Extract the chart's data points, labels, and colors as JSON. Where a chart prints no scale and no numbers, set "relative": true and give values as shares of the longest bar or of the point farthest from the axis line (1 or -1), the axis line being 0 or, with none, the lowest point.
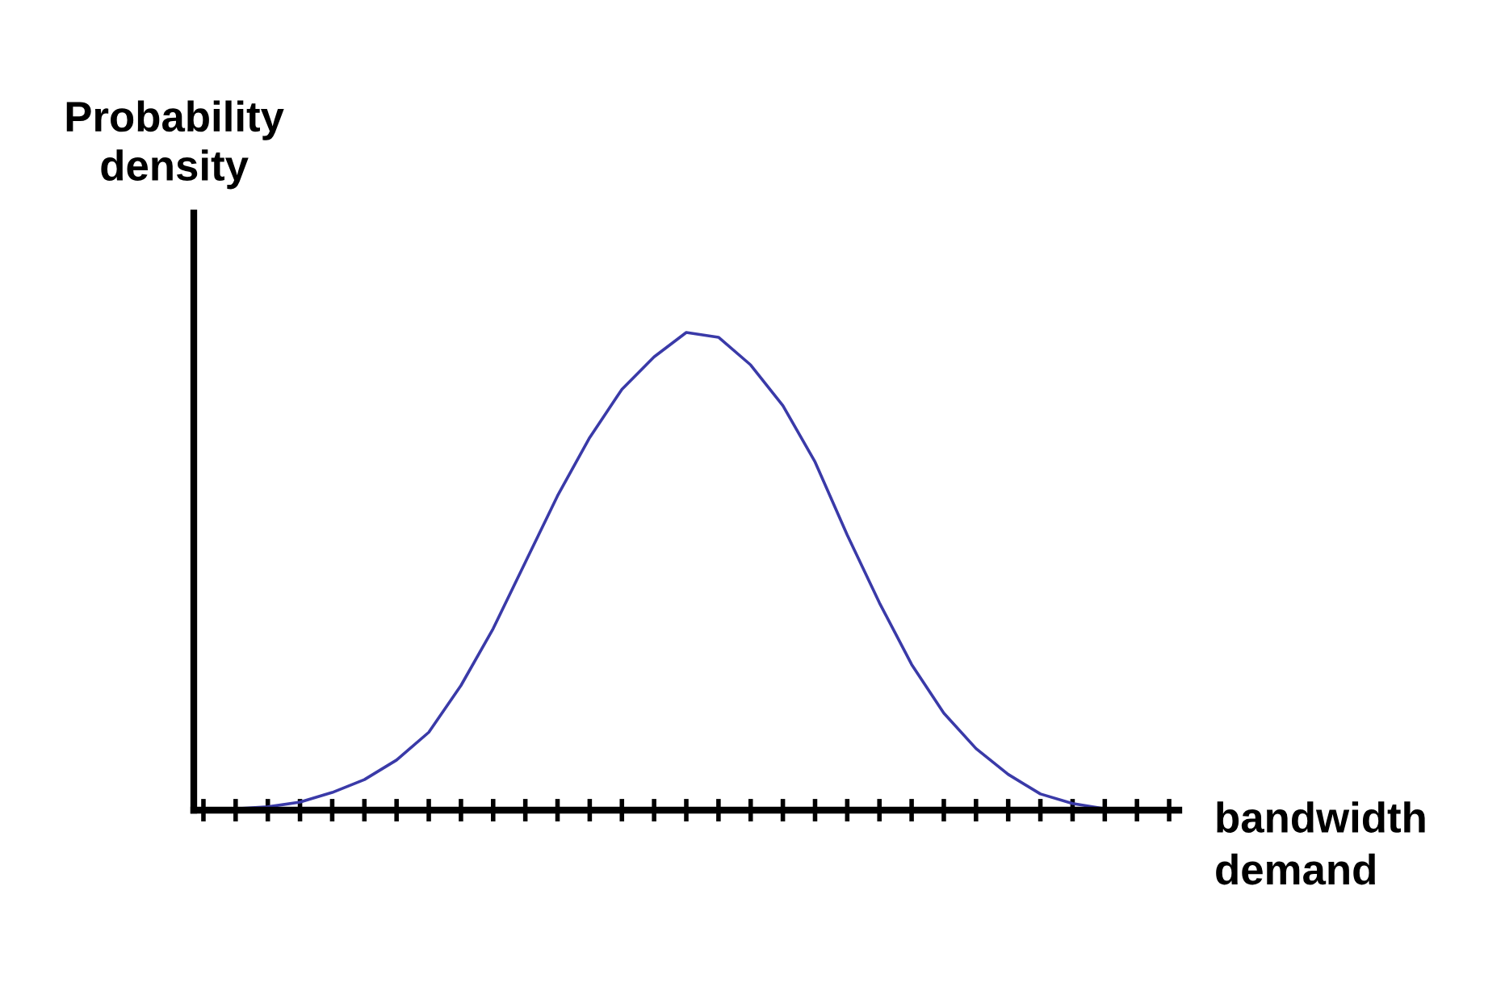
{
  "chart_data": {
    "type": "line",
    "relative": true,
    "xlabel": "bandwidth demand",
    "ylabel": "Probability density",
    "categories": [
      null,
      null,
      null,
      null,
      null,
      null,
      null,
      null,
      null,
      null,
      null,
      null,
      null,
      null,
      null,
      null,
      null,
      null,
      null,
      null,
      null,
      null,
      null,
      null,
      null,
      null,
      null,
      null,
      null,
      null,
      null
    ],
    "series": [
      {
        "color": "#3a3aa8",
        "values": [
          0,
          0.003,
          0.007,
          0.017,
          0.037,
          0.064,
          0.105,
          0.163,
          0.261,
          0.38,
          0.519,
          0.658,
          0.78,
          0.881,
          0.949,
          1,
          0.99,
          0.932,
          0.847,
          0.729,
          0.576,
          0.434,
          0.305,
          0.203,
          0.129,
          0.075,
          0.034,
          0.014,
          0.003,
          0,
          0
        ]
      }
    ],
    "grid": false,
    "legend": false,
    "marker": "none",
    "line_style": "solid"
  }
}
